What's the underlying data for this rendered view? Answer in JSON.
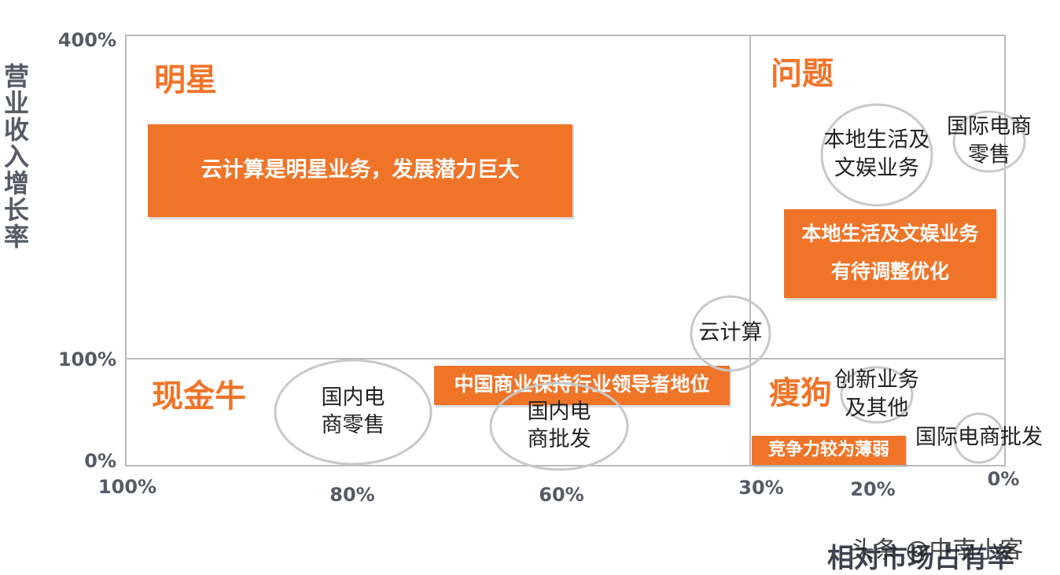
{
  "chart_data": {
    "type": "scatter",
    "title": "",
    "xlabel": "相对市场占有率",
    "ylabel": "营业收入增长率",
    "x_ticks": [
      {
        "value": 100,
        "label": "100%"
      },
      {
        "value": 80,
        "label": "80%"
      },
      {
        "value": 60,
        "label": "60%"
      },
      {
        "value": 30,
        "label": "30%"
      },
      {
        "value": 20,
        "label": "20%"
      },
      {
        "value": 0,
        "label": "0%"
      }
    ],
    "y_ticks": [
      {
        "value": 400,
        "label": "400%"
      },
      {
        "value": 100,
        "label": "100%"
      },
      {
        "value": 0,
        "label": "0%"
      }
    ],
    "quadrants": {
      "star": "明星",
      "question": "问题",
      "cash_cow": "现金牛",
      "dog": "瘦狗"
    },
    "points": [
      {
        "name": "国内电商零售",
        "lines": [
          "国内电",
          "商零售"
        ]
      },
      {
        "name": "国内电商批发",
        "lines": [
          "国内电",
          "商批发"
        ]
      },
      {
        "name": "云计算",
        "lines": [
          "云计算"
        ]
      },
      {
        "name": "本地生活及文娱业务",
        "lines": [
          "本地生活及",
          "文娱业务"
        ]
      },
      {
        "name": "国际电商零售",
        "lines": [
          "国际电商",
          "零售"
        ]
      },
      {
        "name": "创新业务及其他",
        "lines": [
          "创新业务",
          "及其他"
        ]
      },
      {
        "name": "国际电商批发",
        "lines": [
          "国际电商批发"
        ]
      }
    ],
    "annotations": [
      {
        "id": "cloud",
        "lines": [
          "云计算是明星业务，发展潜力巨大"
        ]
      },
      {
        "id": "local",
        "lines": [
          "本地生活及文娱业务",
          "有待调整优化"
        ]
      },
      {
        "id": "china",
        "lines": [
          "中国商业保持行业领导者地位"
        ]
      },
      {
        "id": "weak",
        "lines": [
          "竞争力较为薄弱"
        ]
      }
    ],
    "grid": false,
    "colors": {
      "accent": "#f07428",
      "axis": "#bbbbbb",
      "circle": "#c8c8c8",
      "tick": "#555a66"
    }
  },
  "watermark": "头条 @中南小客"
}
